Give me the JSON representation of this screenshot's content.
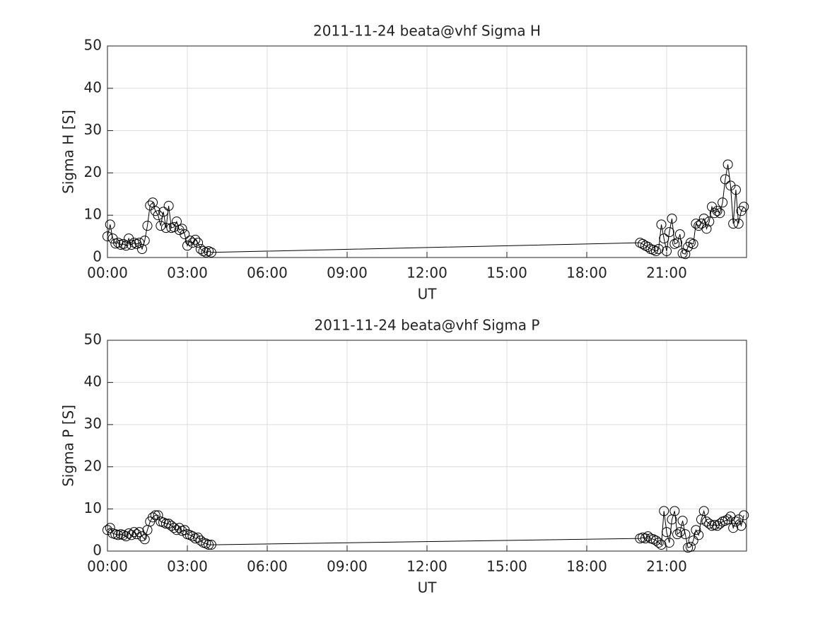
{
  "chart_data": [
    {
      "type": "line",
      "title": "2011-11-24  beata@vhf Sigma H",
      "x_label": "UT",
      "y_label": "Sigma H [S]",
      "x": [
        0,
        0.1,
        0.2,
        0.3,
        0.4,
        0.5,
        0.6,
        0.7,
        0.8,
        0.9,
        1,
        1.1,
        1.2,
        1.3,
        1.4,
        1.5,
        1.6,
        1.7,
        1.8,
        1.9,
        2,
        2.1,
        2.2,
        2.3,
        2.4,
        2.5,
        2.6,
        2.7,
        2.8,
        2.9,
        3,
        3.1,
        3.2,
        3.3,
        3.4,
        3.5,
        3.6,
        3.7,
        3.8,
        3.9,
        20,
        20.1,
        20.2,
        20.3,
        20.4,
        20.5,
        20.6,
        20.7,
        20.8,
        20.9,
        21,
        21.1,
        21.2,
        21.3,
        21.4,
        21.5,
        21.6,
        21.7,
        21.8,
        21.9,
        22,
        22.1,
        22.2,
        22.3,
        22.4,
        22.5,
        22.6,
        22.7,
        22.8,
        22.9,
        23,
        23.1,
        23.2,
        23.3,
        23.4,
        23.5,
        23.6,
        23.7,
        23.8,
        23.9
      ],
      "series": [
        {
          "name": "Sigma H",
          "color": "#000000",
          "values": [
            5,
            7.8,
            4.5,
            3.3,
            3.5,
            3,
            3.2,
            2.8,
            4.5,
            3,
            3.5,
            3.2,
            3.5,
            2,
            4,
            7.5,
            12.3,
            13,
            11,
            10,
            7.5,
            10.8,
            7,
            12.2,
            7,
            7.2,
            8.5,
            6.5,
            6.8,
            5.5,
            2.8,
            4,
            3.5,
            4.2,
            3.5,
            2,
            1.5,
            1.2,
            1.5,
            1.2,
            3.5,
            3.2,
            2.8,
            2.5,
            2,
            1.8,
            1.5,
            2,
            7.8,
            4.5,
            1.5,
            6,
            9.2,
            3.2,
            3.5,
            5.5,
            1,
            0.8,
            2.5,
            3.5,
            3.2,
            8,
            7.5,
            8,
            9.2,
            6.8,
            8.5,
            12,
            10.5,
            11,
            10.5,
            13,
            18.5,
            22,
            17,
            8,
            16,
            8,
            11,
            12
          ]
        }
      ],
      "xlim": [
        0,
        24
      ],
      "xticks": [
        {
          "value": 0,
          "label": "00:00"
        },
        {
          "value": 3,
          "label": "03:00"
        },
        {
          "value": 6,
          "label": "06:00"
        },
        {
          "value": 9,
          "label": "09:00"
        },
        {
          "value": 12,
          "label": "12:00"
        },
        {
          "value": 15,
          "label": "15:00"
        },
        {
          "value": 18,
          "label": "18:00"
        },
        {
          "value": 21,
          "label": "21:00"
        }
      ],
      "ylim": [
        0,
        50
      ],
      "yticks": [
        0,
        10,
        20,
        30,
        40,
        50
      ],
      "grid": true
    },
    {
      "type": "line",
      "title": "2011-11-24  beata@vhf Sigma P",
      "x_label": "UT",
      "y_label": "Sigma P [S]",
      "x": [
        0,
        0.1,
        0.2,
        0.3,
        0.4,
        0.5,
        0.6,
        0.7,
        0.8,
        0.9,
        1,
        1.1,
        1.2,
        1.3,
        1.4,
        1.5,
        1.6,
        1.7,
        1.8,
        1.9,
        2,
        2.1,
        2.2,
        2.3,
        2.4,
        2.5,
        2.6,
        2.7,
        2.8,
        2.9,
        3,
        3.1,
        3.2,
        3.3,
        3.4,
        3.5,
        3.6,
        3.7,
        3.8,
        3.9,
        20,
        20.1,
        20.2,
        20.3,
        20.4,
        20.5,
        20.6,
        20.7,
        20.8,
        20.9,
        21,
        21.1,
        21.2,
        21.3,
        21.4,
        21.5,
        21.6,
        21.7,
        21.8,
        21.9,
        22,
        22.1,
        22.2,
        22.3,
        22.4,
        22.5,
        22.6,
        22.7,
        22.8,
        22.9,
        23,
        23.1,
        23.2,
        23.3,
        23.4,
        23.5,
        23.6,
        23.7,
        23.8,
        23.9
      ],
      "series": [
        {
          "name": "Sigma P",
          "color": "#000000",
          "values": [
            5,
            5.5,
            4.2,
            4,
            3.8,
            4,
            3.8,
            3.5,
            4.2,
            3.8,
            4.5,
            4,
            4.5,
            3.5,
            2.8,
            5,
            7,
            8,
            8.5,
            8.5,
            7,
            6.8,
            6.5,
            6.5,
            6,
            5.5,
            5,
            5.5,
            4.8,
            5,
            4,
            3.8,
            3.5,
            3,
            3.2,
            2.5,
            2,
            1.8,
            1.5,
            1.5,
            3,
            3.2,
            3,
            3.5,
            3,
            2.8,
            2.5,
            2,
            1.5,
            9.5,
            4.5,
            2,
            7.5,
            9.5,
            4,
            4.5,
            7.2,
            4,
            0.8,
            1,
            2.5,
            5,
            3.8,
            7.5,
            9.5,
            7,
            6.5,
            6,
            6.2,
            6,
            6.5,
            7,
            7.2,
            7.5,
            8.2,
            5.5,
            7,
            7.5,
            6,
            8.5
          ]
        }
      ],
      "xlim": [
        0,
        24
      ],
      "xticks": [
        {
          "value": 0,
          "label": "00:00"
        },
        {
          "value": 3,
          "label": "03:00"
        },
        {
          "value": 6,
          "label": "06:00"
        },
        {
          "value": 9,
          "label": "09:00"
        },
        {
          "value": 12,
          "label": "12:00"
        },
        {
          "value": 15,
          "label": "15:00"
        },
        {
          "value": 18,
          "label": "18:00"
        },
        {
          "value": 21,
          "label": "21:00"
        }
      ],
      "ylim": [
        0,
        50
      ],
      "yticks": [
        0,
        10,
        20,
        30,
        40,
        50
      ],
      "grid": true
    }
  ]
}
